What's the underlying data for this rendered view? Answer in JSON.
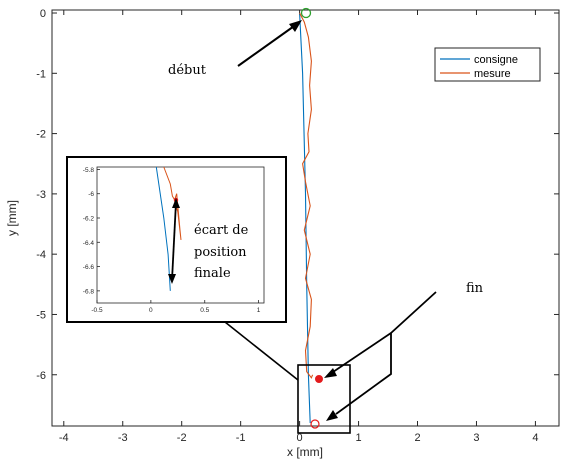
{
  "chart_data": {
    "type": "line",
    "xlabel": "x [mm]",
    "ylabel": "y [mm]",
    "xlim": [
      -4.2,
      4.4
    ],
    "ylim": [
      -6.85,
      0.05
    ],
    "xticks": [
      "-4",
      "-3",
      "-2",
      "-1",
      "0",
      "1",
      "2",
      "3",
      "4"
    ],
    "yticks": [
      "0",
      "-1",
      "-2",
      "-3",
      "-4",
      "-5",
      "-6"
    ],
    "grid": false,
    "legend_position": "top-right",
    "colors": {
      "consigne": "#0072BD",
      "mesure": "#D95319",
      "start_marker": "#2CA02C",
      "end_marker": "#E31A1C"
    },
    "series": [
      {
        "name": "consigne",
        "points": [
          [
            0.0,
            0.0
          ],
          [
            0.05,
            -1.0
          ],
          [
            0.1,
            -3.0
          ],
          [
            0.12,
            -4.5
          ],
          [
            0.15,
            -6.0
          ],
          [
            0.18,
            -6.8
          ]
        ]
      },
      {
        "name": "mesure",
        "points": [
          [
            0.0,
            0.0
          ],
          [
            0.08,
            -0.15
          ],
          [
            0.15,
            -0.4
          ],
          [
            0.2,
            -0.8
          ],
          [
            0.17,
            -1.2
          ],
          [
            0.2,
            -1.6
          ],
          [
            0.14,
            -2.0
          ],
          [
            0.16,
            -2.3
          ],
          [
            0.05,
            -2.5
          ],
          [
            0.1,
            -2.8
          ],
          [
            0.18,
            -3.2
          ],
          [
            0.08,
            -3.6
          ],
          [
            0.18,
            -4.0
          ],
          [
            0.1,
            -4.4
          ],
          [
            0.2,
            -4.75
          ],
          [
            0.18,
            -5.2
          ],
          [
            0.1,
            -5.6
          ],
          [
            0.12,
            -5.95
          ],
          [
            0.2,
            -6.05
          ],
          [
            0.22,
            -6.0
          ]
        ]
      }
    ],
    "annotations": [
      "début",
      "fin",
      "écart de position finale"
    ],
    "inset": {
      "xlim": [
        -0.5,
        1.05
      ],
      "ylim": [
        -6.9,
        -5.78
      ],
      "xticks": [
        "-0.5",
        "0",
        "0.5",
        "1"
      ],
      "yticks": [
        "-5.8",
        "-6",
        "-6.2",
        "-6.4",
        "-6.6",
        "-6.8"
      ],
      "series": [
        {
          "name": "consigne",
          "points": [
            [
              0.05,
              -5.78
            ],
            [
              0.12,
              -6.2
            ],
            [
              0.16,
              -6.5
            ],
            [
              0.18,
              -6.8
            ]
          ]
        },
        {
          "name": "mesure",
          "points": [
            [
              0.12,
              -5.78
            ],
            [
              0.18,
              -5.92
            ],
            [
              0.2,
              -6.02
            ],
            [
              0.22,
              -6.05
            ],
            [
              0.24,
              -6.0
            ],
            [
              0.25,
              -6.1
            ],
            [
              0.27,
              -6.3
            ],
            [
              0.28,
              -6.38
            ],
            [
              0.25,
              -6.15
            ],
            [
              0.22,
              -6.06
            ]
          ]
        }
      ]
    }
  }
}
